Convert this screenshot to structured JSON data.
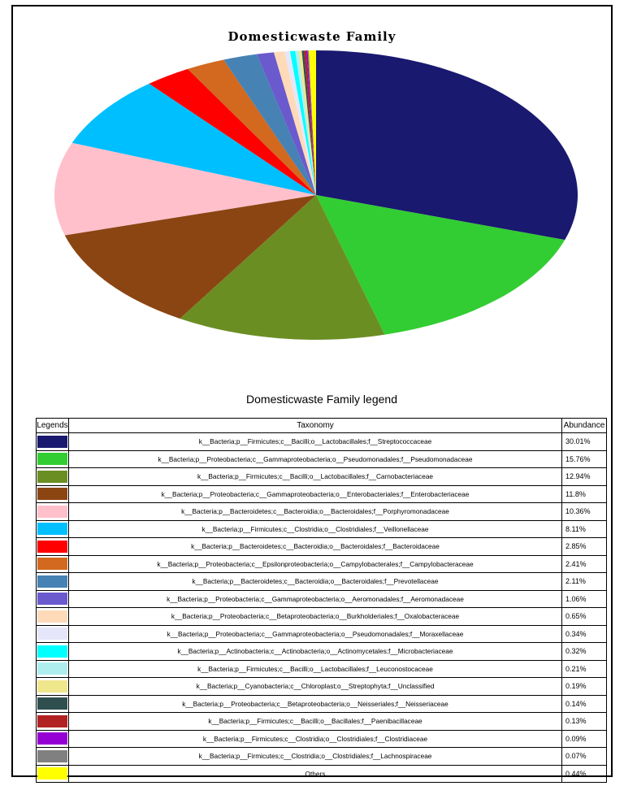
{
  "chart_data": {
    "type": "pie",
    "title": "Domesticwaste Family",
    "legend_title": "Domesticwaste Family legend",
    "columns": [
      "Legends",
      "Taxonomy",
      "Abundance"
    ],
    "slices": [
      {
        "label": "k__Bacteria;p__Firmicutes;c__Bacilli;o__Lactobacillales;f__Streptococcaceae",
        "value": 30.01,
        "display": "30.01%",
        "color": "#191970"
      },
      {
        "label": "k__Bacteria;p__Proteobacteria;c__Gammaproteobacteria;o__Pseudomonadales;f__Pseudomonadaceae",
        "value": 15.76,
        "display": "15.76%",
        "color": "#32CD32"
      },
      {
        "label": "k__Bacteria;p__Firmicutes;c__Bacilli;o__Lactobacillales;f__Carnobacteriaceae",
        "value": 12.94,
        "display": "12.94%",
        "color": "#6B8E23"
      },
      {
        "label": "k__Bacteria;p__Proteobacteria;c__Gammaproteobacteria;o__Enterobacteriales;f__Enterobacteriaceae",
        "value": 11.8,
        "display": "11.8%",
        "color": "#8B4513"
      },
      {
        "label": "k__Bacteria;p__Bacteroidetes;c__Bacteroidia;o__Bacteroidales;f__Porphyromonadaceae",
        "value": 10.36,
        "display": "10.36%",
        "color": "#FFC0CB"
      },
      {
        "label": "k__Bacteria;p__Firmicutes;c__Clostridia;o__Clostridiales;f__Veillonellaceae",
        "value": 8.11,
        "display": "8.11%",
        "color": "#00BFFF"
      },
      {
        "label": "k__Bacteria;p__Bacteroidetes;c__Bacteroidia;o__Bacteroidales;f__Bacteroidaceae",
        "value": 2.85,
        "display": "2.85%",
        "color": "#FF0000"
      },
      {
        "label": "k__Bacteria;p__Proteobacteria;c__Epsilonproteobacteria;o__Campylobacterales;f__Campylobacteraceae",
        "value": 2.41,
        "display": "2.41%",
        "color": "#D2691E"
      },
      {
        "label": "k__Bacteria;p__Bacteroidetes;c__Bacteroidia;o__Bacteroidales;f__Prevotellaceae",
        "value": 2.11,
        "display": "2.11%",
        "color": "#4682B4"
      },
      {
        "label": "k__Bacteria;p__Proteobacteria;c__Gammaproteobacteria;o__Aeromonadales;f__Aeromonadaceae",
        "value": 1.06,
        "display": "1.06%",
        "color": "#6A5ACD"
      },
      {
        "label": "k__Bacteria;p__Proteobacteria;c__Betaproteobacteria;o__Burkholderiales;f__Oxalobacteraceae",
        "value": 0.65,
        "display": "0.65%",
        "color": "#FFDAB9"
      },
      {
        "label": "k__Bacteria;p__Proteobacteria;c__Gammaproteobacteria;o__Pseudomonadales;f__Moraxellaceae",
        "value": 0.34,
        "display": "0.34%",
        "color": "#E6E6FA"
      },
      {
        "label": "k__Bacteria;p__Actinobacteria;c__Actinobacteria;o__Actinomycetales;f__Microbacteriaceae",
        "value": 0.32,
        "display": "0.32%",
        "color": "#00FFFF"
      },
      {
        "label": "k__Bacteria;p__Firmicutes;c__Bacilli;o__Lactobacillales;f__Leuconostocaceae",
        "value": 0.21,
        "display": "0.21%",
        "color": "#AFEEEE"
      },
      {
        "label": "k__Bacteria;p__Cyanobacteria;c__Chloroplast;o__Streptophyta;f__Unclassified",
        "value": 0.19,
        "display": "0.19%",
        "color": "#F0E68C"
      },
      {
        "label": "k__Bacteria;p__Proteobacteria;c__Betaproteobacteria;o__Neisseriales;f__Neisseriaceae",
        "value": 0.14,
        "display": "0.14%",
        "color": "#2F4F4F"
      },
      {
        "label": "k__Bacteria;p__Firmicutes;c__Bacilli;o__Bacillales;f__Paenibacillaceae",
        "value": 0.13,
        "display": "0.13%",
        "color": "#B22222"
      },
      {
        "label": "k__Bacteria;p__Firmicutes;c__Clostridia;o__Clostridiales;f__Clostridiaceae",
        "value": 0.09,
        "display": "0.09%",
        "color": "#9400D3"
      },
      {
        "label": "k__Bacteria;p__Firmicutes;c__Clostridia;o__Clostridiales;f__Lachnospiraceae",
        "value": 0.07,
        "display": "0.07%",
        "color": "#808080"
      },
      {
        "label": "Others",
        "value": 0.44,
        "display": "0.44%",
        "color": "#FFFF00"
      }
    ]
  }
}
